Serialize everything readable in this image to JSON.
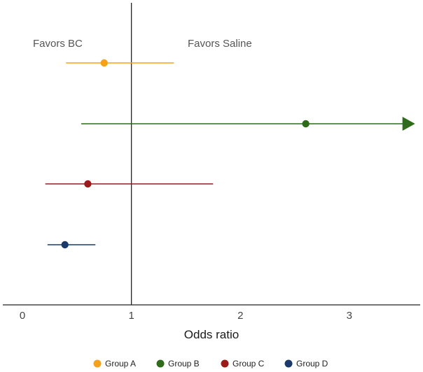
{
  "chart_data": {
    "type": "scatter",
    "subtype": "forest-plot",
    "xlabel": "Odds ratio",
    "xlim": [
      -0.18,
      3.65
    ],
    "xticks": [
      0,
      1,
      2,
      3
    ],
    "reference_line": 1,
    "annotations": [
      "Favors BC",
      "Favors Saline"
    ],
    "legend_position": "bottom",
    "grid": false,
    "series": [
      {
        "name": "Group A",
        "estimate": 0.75,
        "lower": 0.4,
        "upper": 1.39,
        "color": "#F5A11B",
        "arrow": false
      },
      {
        "name": "Group B",
        "estimate": 2.6,
        "lower": 0.54,
        "upper": 3.5,
        "color": "#2E6B1A",
        "arrow": true
      },
      {
        "name": "Group C",
        "estimate": 0.6,
        "lower": 0.21,
        "upper": 1.75,
        "color": "#9B1B1B",
        "arrow": false
      },
      {
        "name": "Group D",
        "estimate": 0.39,
        "lower": 0.23,
        "upper": 0.67,
        "color": "#1B3A6B",
        "arrow": false
      }
    ]
  }
}
